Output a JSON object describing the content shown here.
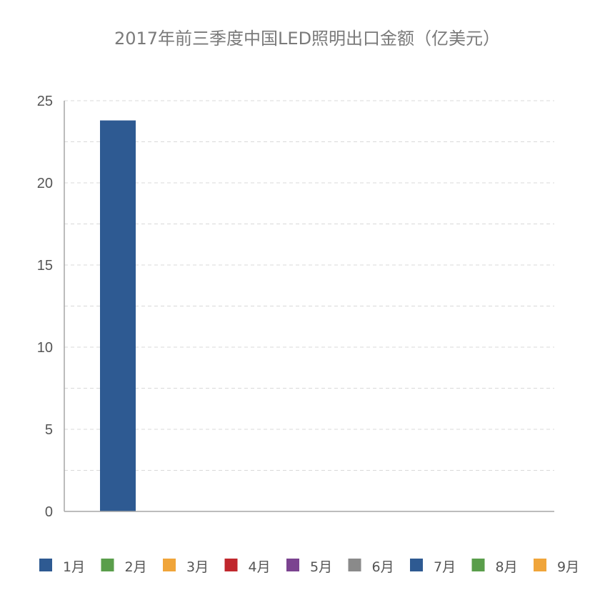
{
  "chart_data": {
    "type": "bar",
    "title": "2017年前三季度中国LED照明出口金额（亿美元）",
    "xlabel": "",
    "ylabel": "",
    "ylim": [
      0,
      25
    ],
    "yticks": [
      0,
      5,
      10,
      15,
      20,
      25
    ],
    "grid": true,
    "legend_position": "bottom",
    "series": [
      {
        "name": "1月",
        "value": 23.8,
        "color": "#2e5a92"
      },
      {
        "name": "2月",
        "value": 0,
        "color": "#5a9e4b"
      },
      {
        "name": "3月",
        "value": 0,
        "color": "#f0a53a"
      },
      {
        "name": "4月",
        "value": 0,
        "color": "#c0272d"
      },
      {
        "name": "5月",
        "value": 0,
        "color": "#7b4390"
      },
      {
        "name": "6月",
        "value": 0,
        "color": "#8a8a8a"
      },
      {
        "name": "7月",
        "value": 0,
        "color": "#2e5a92"
      },
      {
        "name": "8月",
        "value": 0,
        "color": "#5a9e4b"
      },
      {
        "name": "9月",
        "value": 0,
        "color": "#f0a53a"
      }
    ]
  }
}
